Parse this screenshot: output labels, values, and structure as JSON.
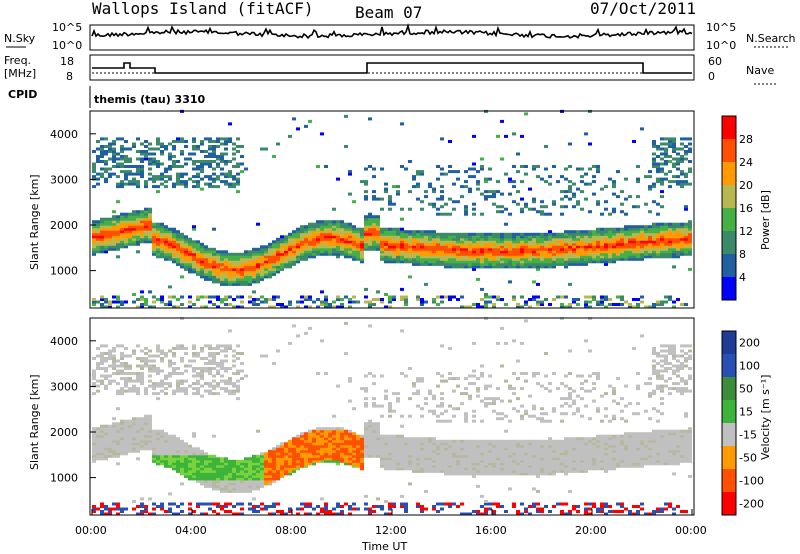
{
  "header": {
    "station": "Wallops Island (fitACF)",
    "beam": "Beam 07",
    "date": "07/Oct/2011"
  },
  "top_panels": {
    "nsky_label": "N.Sky",
    "nsky_ticks": [
      "10^5",
      "10^0"
    ],
    "nsearch_label": "N.Search",
    "nsearch_ticks": [
      "10^5",
      "10^0"
    ],
    "freq_label": "Freq.",
    "freq_unit": "[MHz]",
    "freq_ticks": [
      "18",
      "8"
    ],
    "nave_label": "Nave",
    "nave_ticks": [
      "60",
      "0"
    ],
    "cpid_label": "CPID",
    "cpid_value": "themis (tau) 3310"
  },
  "colors": {
    "scale": [
      "#0000ff",
      "#2060a0",
      "#3a8a6a",
      "#45b045",
      "#b8b850",
      "#ff9a00",
      "#ff5000",
      "#ff0000"
    ],
    "velocity_scale": [
      "#ff0000",
      "#ff5000",
      "#ff9a00",
      "#c0c0c0",
      "#3cb43c",
      "#3c8c3c",
      "#2850b4",
      "#1e3c96"
    ]
  },
  "chart_data": [
    {
      "type": "heatmap",
      "name": "Power",
      "ylabel": "Slant Range [km]",
      "colorbar_label": "Power [dB]",
      "colorbar_ticks": [
        "28",
        "24",
        "20",
        "16",
        "12",
        "8",
        "4"
      ],
      "colorbar_range": [
        0,
        32
      ],
      "yticks": [
        "4000",
        "3000",
        "2000",
        "1000"
      ],
      "ylim": [
        180,
        4500
      ],
      "xlim": [
        "00:00",
        "24:00"
      ]
    },
    {
      "type": "heatmap",
      "name": "Velocity",
      "ylabel": "Slant Range [km]",
      "colorbar_label": "Velocity [m s⁻¹]",
      "colorbar_ticks": [
        "200",
        "100",
        "50",
        "15",
        "-15",
        "-50",
        "-100",
        "-200"
      ],
      "yticks": [
        "4000",
        "3000",
        "2000",
        "1000"
      ],
      "ylim": [
        180,
        4500
      ],
      "xlim": [
        "00:00",
        "24:00"
      ],
      "xticks": [
        "00:00",
        "04:00",
        "08:00",
        "12:00",
        "16:00",
        "20:00",
        "00:00"
      ],
      "xlabel": "Time UT"
    }
  ]
}
